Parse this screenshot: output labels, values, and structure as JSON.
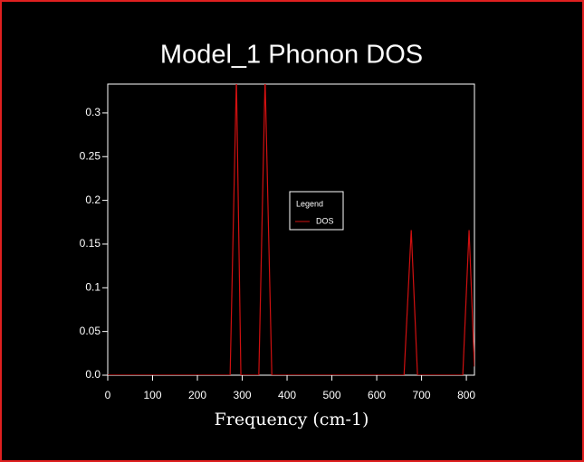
{
  "chart_data": {
    "type": "line",
    "title": "Model_1 Phonon DOS",
    "x_label": "Frequency (cm-1)",
    "legend_title": "Legend",
    "legend_position": "center",
    "x": [
      0,
      273,
      287,
      297,
      337,
      351,
      366,
      661,
      677,
      691,
      792,
      806,
      818
    ],
    "series": [
      {
        "name": "DOS",
        "color": "#d01010",
        "values": [
          0,
          0,
          0.34,
          0,
          0,
          0.34,
          0,
          0,
          0.166,
          0,
          0,
          0.166,
          0.01
        ]
      }
    ],
    "xlim": [
      0,
      818
    ],
    "ylim": [
      0,
      0.333
    ],
    "xticks": [
      0,
      100,
      200,
      300,
      400,
      500,
      600,
      700,
      800
    ],
    "yticks": [
      {
        "value": 0,
        "label": "0.0"
      },
      0.05,
      0.1,
      0.15,
      0.2,
      0.25,
      0.3
    ]
  }
}
